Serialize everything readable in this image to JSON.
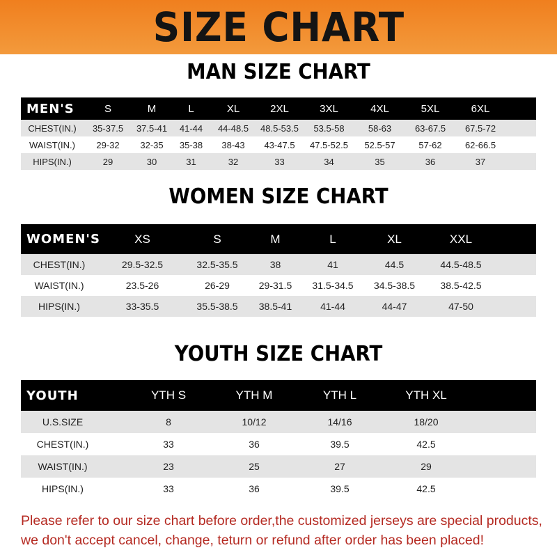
{
  "banner_title": "SIZE CHART",
  "colors": {
    "banner": "#f28a2a",
    "header_row": "#000000",
    "alt_row": "#e4e4e4",
    "note": "#b52a22"
  },
  "men": {
    "title": "MAN SIZE CHART",
    "header": [
      "MEN'S",
      "S",
      "M",
      "L",
      "XL",
      "2XL",
      "3XL",
      "4XL",
      "5XL",
      "6XL"
    ],
    "rows": [
      [
        "CHEST(IN.)",
        "35-37.5",
        "37.5-41",
        "41-44",
        "44-48.5",
        "48.5-53.5",
        "53.5-58",
        "58-63",
        "63-67.5",
        "67.5-72"
      ],
      [
        "WAIST(IN.)",
        "29-32",
        "32-35",
        "35-38",
        "38-43",
        "43-47.5",
        "47.5-52.5",
        "52.5-57",
        "57-62",
        "62-66.5"
      ],
      [
        "HIPS(IN.)",
        "29",
        "30",
        "31",
        "32",
        "33",
        "34",
        "35",
        "36",
        "37"
      ]
    ]
  },
  "women": {
    "title": "WOMEN SIZE CHART",
    "header": [
      "WOMEN'S",
      "XS",
      "S",
      "M",
      "L",
      "XL",
      "XXL"
    ],
    "rows": [
      [
        "CHEST(IN.)",
        "29.5-32.5",
        "32.5-35.5",
        "38",
        "41",
        "44.5",
        "44.5-48.5"
      ],
      [
        "WAIST(IN.)",
        "23.5-26",
        "26-29",
        "29-31.5",
        "31.5-34.5",
        "34.5-38.5",
        "38.5-42.5"
      ],
      [
        "HIPS(IN.)",
        "33-35.5",
        "35.5-38.5",
        "38.5-41",
        "41-44",
        "44-47",
        "47-50"
      ]
    ]
  },
  "youth": {
    "title": "YOUTH SIZE CHART",
    "header": [
      "YOUTH",
      "YTH S",
      "YTH M",
      "YTH L",
      "YTH XL"
    ],
    "rows": [
      [
        "U.S.SIZE",
        "8",
        "10/12",
        "14/16",
        "18/20"
      ],
      [
        "CHEST(IN.)",
        "33",
        "36",
        "39.5",
        "42.5"
      ],
      [
        "WAIST(IN.)",
        "23",
        "25",
        "27",
        "29"
      ],
      [
        "HIPS(IN.)",
        "33",
        "36",
        "39.5",
        "42.5"
      ]
    ]
  },
  "note": {
    "line1": "Please refer to our size chart before order,the customized jerseys are special products,",
    "line2": "we don't accept cancel, change, teturn or refund after order has been placed!"
  }
}
